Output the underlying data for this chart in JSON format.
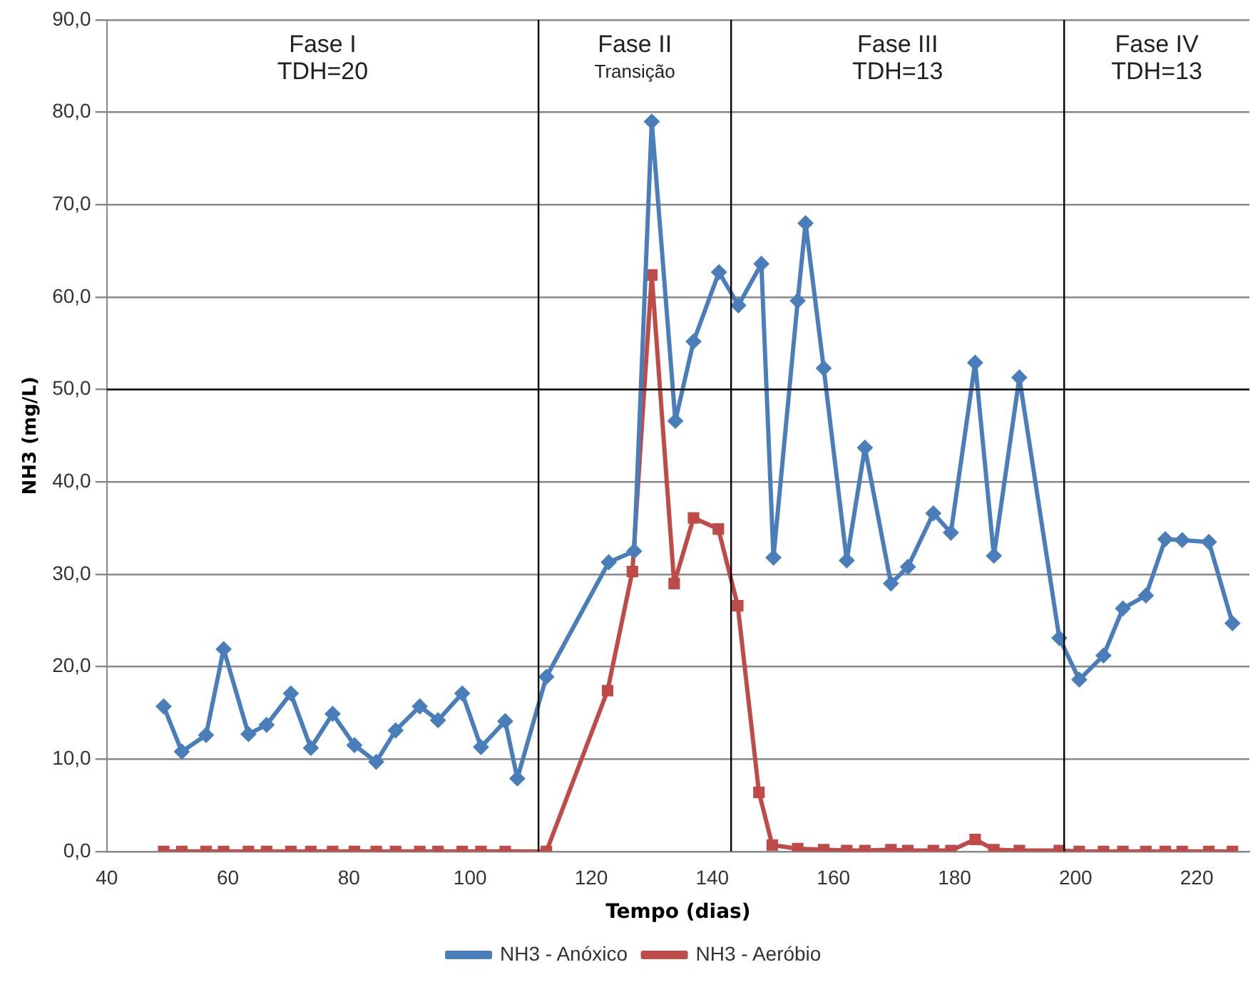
{
  "chart_data": {
    "type": "line",
    "xlabel": "Tempo (dias)",
    "ylabel": "NH3 (mg/L)",
    "xlim": [
      40,
      228.7
    ],
    "xticks": [
      40,
      60,
      80,
      100,
      120,
      140,
      160,
      180,
      200,
      220
    ],
    "ylim": [
      0,
      90
    ],
    "yticks": [
      {
        "value": 0,
        "label": "0,0"
      },
      {
        "value": 10,
        "label": "10,0"
      },
      {
        "value": 20,
        "label": "20,0"
      },
      {
        "value": 30,
        "label": "30,0"
      },
      {
        "value": 40,
        "label": "40,0"
      },
      {
        "value": 50,
        "label": "50,0"
      },
      {
        "value": 60,
        "label": "60,0"
      },
      {
        "value": 70,
        "label": "70,0"
      },
      {
        "value": 80,
        "label": "80,0"
      },
      {
        "value": 90,
        "label": "90,0"
      }
    ],
    "grid": "y",
    "legend": "bottom",
    "line_style": "solid",
    "series": [
      {
        "name": "NH3 - Anóxico",
        "color": "#4a7ebb",
        "marker": "diamond",
        "x": [
          49.4,
          52.4,
          56.4,
          59.3,
          63.4,
          66.4,
          70.4,
          73.7,
          77.3,
          80.9,
          84.5,
          87.7,
          91.7,
          94.7,
          98.7,
          101.8,
          105.8,
          107.8,
          112.6,
          122.9,
          127.1,
          130,
          133.9,
          136.9,
          141.1,
          144.3,
          148.1,
          150.1,
          154.1,
          155.4,
          158.4,
          162.2,
          165.2,
          169.5,
          172.3,
          176.5,
          179.4,
          183.4,
          186.5,
          190.7,
          197.3,
          200.6,
          204.6,
          207.8,
          211.6,
          214.8,
          217.6,
          222,
          225.9
        ],
        "values": [
          15.7,
          10.8,
          12.6,
          21.9,
          12.7,
          13.7,
          17.1,
          11.2,
          14.9,
          11.5,
          9.7,
          13.1,
          15.7,
          14.2,
          17.1,
          11.3,
          14.1,
          7.9,
          18.9,
          31.3,
          32.5,
          79,
          46.6,
          55.2,
          62.7,
          59.1,
          63.6,
          31.8,
          59.6,
          68,
          52.3,
          31.5,
          43.7,
          29,
          30.8,
          36.6,
          34.5,
          52.9,
          32,
          51.3,
          23.1,
          18.6,
          21.2,
          26.3,
          27.7,
          33.8,
          33.7,
          33.5,
          24.7
        ]
      },
      {
        "name": "NH3 - Aeróbio",
        "color": "#be4b48",
        "marker": "square",
        "x": [
          49.4,
          52.4,
          56.4,
          59.3,
          63.4,
          66.4,
          70.4,
          73.7,
          77.3,
          80.9,
          84.5,
          87.7,
          91.7,
          94.7,
          98.7,
          101.8,
          105.8,
          112.6,
          122.7,
          126.8,
          130,
          133.7,
          136.9,
          141,
          144.2,
          147.7,
          149.9,
          154.1,
          158.4,
          162.2,
          165.2,
          169.5,
          172.3,
          176.5,
          179.4,
          183.4,
          186.5,
          190.7,
          197.3,
          200.6,
          204.6,
          207.8,
          211.6,
          214.8,
          217.6,
          222,
          225.9
        ],
        "values": [
          0,
          0,
          0,
          0,
          0,
          0,
          0,
          0,
          0,
          0,
          0,
          0,
          0,
          0,
          0,
          0,
          0,
          0,
          17.4,
          30.3,
          62.4,
          29,
          36.1,
          34.9,
          26.6,
          6.4,
          0.7,
          0.3,
          0.2,
          0.1,
          0.1,
          0.2,
          0.1,
          0.1,
          0.1,
          1.3,
          0.2,
          0.1,
          0.1,
          0,
          0,
          0,
          0,
          0,
          0,
          0,
          0
        ]
      }
    ],
    "ref_lines": [
      {
        "axis": "x",
        "value": 111.3,
        "color": "#000000"
      },
      {
        "axis": "x",
        "value": 143.1,
        "color": "#000000"
      },
      {
        "axis": "x",
        "value": 198.1,
        "color": "#000000"
      },
      {
        "axis": "y",
        "value": 50,
        "color": "#000000"
      }
    ],
    "annotations": [
      "Fase I\nTDH=20",
      "Fase II\nTransição",
      "Fase III\nTDH=13",
      "Fase IV\nTDH=13"
    ]
  }
}
